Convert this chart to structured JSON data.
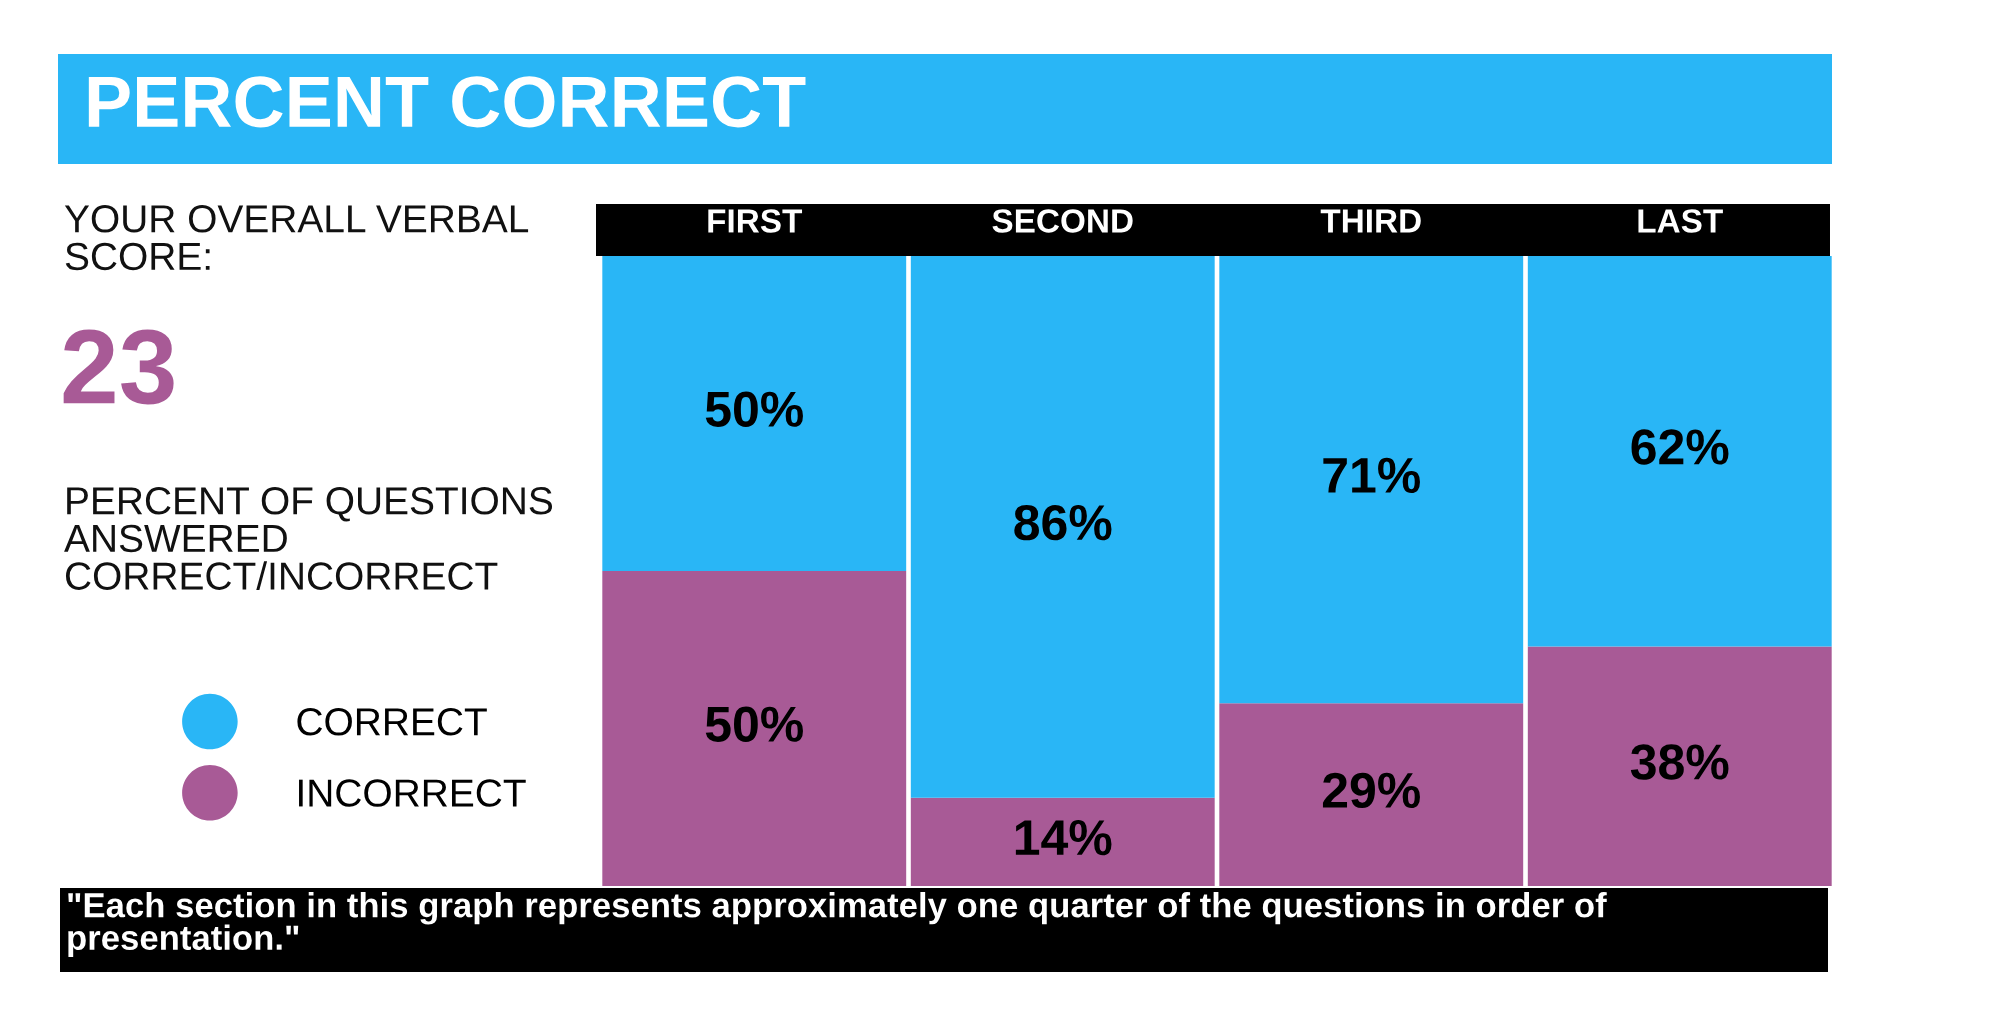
{
  "chart_data": {
    "type": "bar",
    "stacked": true,
    "legend": "left",
    "grid": false,
    "title": "PERCENT CORRECT",
    "categories": [
      "FIRST",
      "SECOND",
      "THIRD",
      "LAST"
    ],
    "series": [
      {
        "name": "INCORRECT",
        "color": "#a85a96",
        "values": [
          50,
          14,
          29,
          38
        ],
        "value_labels": [
          "50%",
          "14%",
          "29%",
          "38%"
        ]
      },
      {
        "name": "CORRECT",
        "color": "#29b6f6",
        "values": [
          50,
          86,
          71,
          62
        ],
        "value_labels": [
          "50%",
          "86%",
          "71%",
          "62%"
        ]
      }
    ],
    "annotations": [
      "YOUR OVERALL VERBAL\nSCORE:",
      "23",
      "PERCENT OF QUESTIONS\nANSWERED\nCORRECT/INCORRECT",
      "\"Each section in this graph represents approximately one quarter of the questions in order of\npresentation.\""
    ]
  }
}
